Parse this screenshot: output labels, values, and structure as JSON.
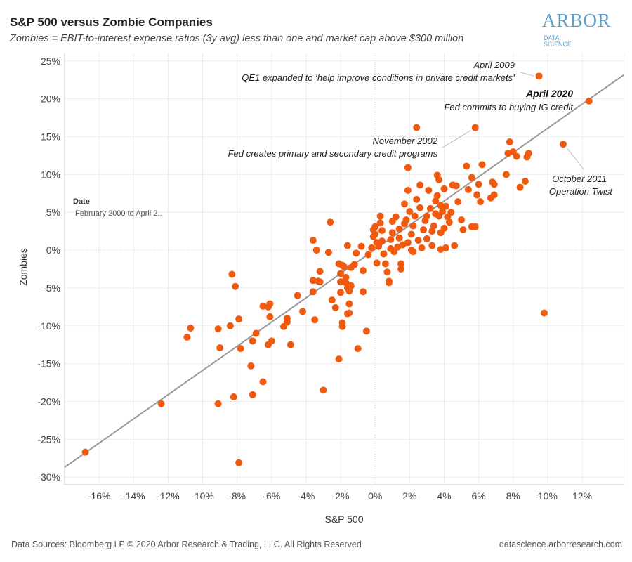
{
  "header": {
    "title": "S&P 500 versus Zombie Companies",
    "subtitle": "Zombies = EBIT-to-interest expense ratios (3y avg) less than one and market cap above $300 million"
  },
  "logo": {
    "main": "ARBOR",
    "line1": "DATA",
    "line2": "SCIENCE"
  },
  "footer": {
    "left": "Data Sources: Bloomberg LP © 2020 Arbor Research & Trading, LLC. All Rights Reserved",
    "right": "datascience.arborresearch.com"
  },
  "filter": {
    "label": "Date",
    "value": "February 2000 to April 2.."
  },
  "colors": {
    "point": "#f05a0e",
    "trend": "#999999",
    "grid": "#ececec"
  },
  "chart_data": {
    "type": "scatter",
    "xlabel": "S&P 500",
    "ylabel": "Zombies",
    "xlim": [
      -18,
      14.4
    ],
    "ylim": [
      -31,
      26
    ],
    "x_ticks": [
      -16,
      -14,
      -12,
      -10,
      -8,
      -6,
      -4,
      -2,
      0,
      2,
      4,
      6,
      8,
      10,
      12
    ],
    "y_ticks": [
      -30,
      -25,
      -20,
      -15,
      -10,
      -5,
      0,
      5,
      10,
      15,
      20,
      25
    ],
    "x_tick_labels": [
      "-16%",
      "-14%",
      "-12%",
      "-10%",
      "-8%",
      "-6%",
      "-4%",
      "-2%",
      "0%",
      "2%",
      "4%",
      "6%",
      "8%",
      "10%",
      "12%"
    ],
    "y_tick_labels": [
      "-30%",
      "-25%",
      "-20%",
      "-15%",
      "-10%",
      "-5%",
      "0%",
      "5%",
      "10%",
      "15%",
      "20%",
      "25%"
    ],
    "trendline": {
      "slope": 1.6,
      "intercept": 0.1
    },
    "annotations": [
      {
        "lines": [
          "April 2009",
          "QE1 expanded to ‘help improve conditions in private credit markets’"
        ],
        "point": [
          9.5,
          23
        ]
      },
      {
        "lines": [
          "April 2020",
          "Fed commits to buying IG credit"
        ],
        "point": [
          12.4,
          19.7
        ],
        "bold_first": true
      },
      {
        "lines": [
          "November 2002",
          "Fed creates primary and secondary credit programs"
        ],
        "point": [
          5.8,
          16.2
        ]
      },
      {
        "lines": [
          "October 2011",
          "Operation Twist"
        ],
        "point": [
          10.9,
          14
        ]
      }
    ],
    "points": [
      [
        -16.8,
        -26.7
      ],
      [
        -12.4,
        -20.3
      ],
      [
        -10.7,
        -10.3
      ],
      [
        -10.9,
        -11.5
      ],
      [
        -9.1,
        -20.3
      ],
      [
        -9.0,
        -12.9
      ],
      [
        -9.1,
        -10.4
      ],
      [
        -8.3,
        -3.2
      ],
      [
        -8.1,
        -4.8
      ],
      [
        -8.4,
        -10.0
      ],
      [
        -8.2,
        -19.4
      ],
      [
        -7.9,
        -9.1
      ],
      [
        -7.8,
        -13.0
      ],
      [
        -7.9,
        -28.1
      ],
      [
        -7.1,
        -12.0
      ],
      [
        -7.2,
        -15.3
      ],
      [
        -7.1,
        -19.1
      ],
      [
        -6.9,
        -11.0
      ],
      [
        -6.5,
        -7.4
      ],
      [
        -6.2,
        -7.5
      ],
      [
        -6.1,
        -7.1
      ],
      [
        -6.1,
        -8.8
      ],
      [
        -6.5,
        -17.4
      ],
      [
        -6.2,
        -12.5
      ],
      [
        -6.0,
        -12.0
      ],
      [
        -5.3,
        -10.1
      ],
      [
        -5.1,
        -9.5
      ],
      [
        -5.1,
        -9.0
      ],
      [
        -4.9,
        -12.5
      ],
      [
        -4.5,
        -6.0
      ],
      [
        -4.2,
        -8.1
      ],
      [
        -3.6,
        -4.0
      ],
      [
        -3.6,
        -5.5
      ],
      [
        -3.3,
        -4.1
      ],
      [
        -3.6,
        1.3
      ],
      [
        -3.4,
        0.0
      ],
      [
        -3.2,
        -2.8
      ],
      [
        -3.2,
        -4.2
      ],
      [
        -3.5,
        -9.2
      ],
      [
        -3.0,
        -18.5
      ],
      [
        -2.6,
        3.7
      ],
      [
        -2.7,
        -0.3
      ],
      [
        -2.5,
        -6.6
      ],
      [
        -2.3,
        -7.6
      ],
      [
        -2.1,
        -14.4
      ],
      [
        -1.9,
        -9.6
      ],
      [
        -1.9,
        -10.1
      ],
      [
        -2.0,
        -5.6
      ],
      [
        -2.0,
        -4.2
      ],
      [
        -1.9,
        -2.0
      ],
      [
        -2.0,
        -3.1
      ],
      [
        -2.1,
        -1.8
      ],
      [
        -1.8,
        -2.2
      ],
      [
        -1.7,
        -3.6
      ],
      [
        -1.7,
        -4.3
      ],
      [
        -1.6,
        -5.0
      ],
      [
        -1.5,
        -5.4
      ],
      [
        -1.5,
        -7.1
      ],
      [
        -1.6,
        -8.4
      ],
      [
        -1.5,
        -8.3
      ],
      [
        -1.4,
        -4.7
      ],
      [
        -1.4,
        -2.3
      ],
      [
        -1.6,
        0.6
      ],
      [
        -1.2,
        -1.9
      ],
      [
        -1.1,
        -0.4
      ],
      [
        -1.0,
        -13.0
      ],
      [
        -0.8,
        0.5
      ],
      [
        -0.7,
        -2.7
      ],
      [
        -0.7,
        -5.5
      ],
      [
        -0.5,
        -10.7
      ],
      [
        -0.4,
        -0.6
      ],
      [
        -0.2,
        0.3
      ],
      [
        -0.1,
        1.8
      ],
      [
        -0.1,
        2.7
      ],
      [
        0.0,
        3.1
      ],
      [
        0.0,
        2.1
      ],
      [
        0.1,
        1.0
      ],
      [
        0.1,
        -1.7
      ],
      [
        0.2,
        0.5
      ],
      [
        0.3,
        3.6
      ],
      [
        0.3,
        4.5
      ],
      [
        0.4,
        2.6
      ],
      [
        0.4,
        1.2
      ],
      [
        0.5,
        -0.5
      ],
      [
        0.6,
        -1.8
      ],
      [
        0.7,
        -2.9
      ],
      [
        0.8,
        -4.3
      ],
      [
        0.8,
        -4.1
      ],
      [
        0.9,
        0.2
      ],
      [
        0.9,
        1.4
      ],
      [
        1.0,
        2.3
      ],
      [
        1.0,
        3.8
      ],
      [
        1.1,
        -0.2
      ],
      [
        1.2,
        4.4
      ],
      [
        1.3,
        0.4
      ],
      [
        1.4,
        1.6
      ],
      [
        1.4,
        2.8
      ],
      [
        1.5,
        -1.8
      ],
      [
        1.5,
        -2.5
      ],
      [
        1.6,
        0.7
      ],
      [
        1.7,
        3.5
      ],
      [
        1.7,
        6.1
      ],
      [
        1.8,
        4.0
      ],
      [
        1.9,
        1.0
      ],
      [
        1.9,
        7.9
      ],
      [
        1.9,
        10.9
      ],
      [
        2.0,
        5.1
      ],
      [
        2.1,
        2.1
      ],
      [
        2.1,
        0.0
      ],
      [
        2.2,
        -0.2
      ],
      [
        2.2,
        3.2
      ],
      [
        2.3,
        4.5
      ],
      [
        2.4,
        6.7
      ],
      [
        2.4,
        16.2
      ],
      [
        2.5,
        1.3
      ],
      [
        2.6,
        5.6
      ],
      [
        2.6,
        8.6
      ],
      [
        2.7,
        0.3
      ],
      [
        2.8,
        2.7
      ],
      [
        2.9,
        3.9
      ],
      [
        3.0,
        4.5
      ],
      [
        3.0,
        1.5
      ],
      [
        3.1,
        7.9
      ],
      [
        3.2,
        5.5
      ],
      [
        3.3,
        0.6
      ],
      [
        3.3,
        2.5
      ],
      [
        3.4,
        3.2
      ],
      [
        3.5,
        4.8
      ],
      [
        3.5,
        6.5
      ],
      [
        3.6,
        7.2
      ],
      [
        3.6,
        9.9
      ],
      [
        3.7,
        9.3
      ],
      [
        3.7,
        4.5
      ],
      [
        3.8,
        5.9
      ],
      [
        3.8,
        2.3
      ],
      [
        3.8,
        0.1
      ],
      [
        3.9,
        5.1
      ],
      [
        4.0,
        8.1
      ],
      [
        4.0,
        2.9
      ],
      [
        4.1,
        0.3
      ],
      [
        4.1,
        5.8
      ],
      [
        4.2,
        4.4
      ],
      [
        4.3,
        3.7
      ],
      [
        4.4,
        5.0
      ],
      [
        4.5,
        8.6
      ],
      [
        4.6,
        0.6
      ],
      [
        4.7,
        8.5
      ],
      [
        4.8,
        6.4
      ],
      [
        5.0,
        4.0
      ],
      [
        5.1,
        2.7
      ],
      [
        5.3,
        11.1
      ],
      [
        5.4,
        8.0
      ],
      [
        5.6,
        3.1
      ],
      [
        5.6,
        9.6
      ],
      [
        5.8,
        3.1
      ],
      [
        5.8,
        16.2
      ],
      [
        5.9,
        7.3
      ],
      [
        6.0,
        8.7
      ],
      [
        6.1,
        6.4
      ],
      [
        6.2,
        11.3
      ],
      [
        6.7,
        6.9
      ],
      [
        6.8,
        9.0
      ],
      [
        6.9,
        8.7
      ],
      [
        6.9,
        7.3
      ],
      [
        7.6,
        10.0
      ],
      [
        7.7,
        12.8
      ],
      [
        7.8,
        14.3
      ],
      [
        8.0,
        13.0
      ],
      [
        8.2,
        12.4
      ],
      [
        8.4,
        8.3
      ],
      [
        8.7,
        9.1
      ],
      [
        8.8,
        12.3
      ],
      [
        8.9,
        12.8
      ],
      [
        9.5,
        23.0
      ],
      [
        9.8,
        -8.3
      ],
      [
        10.9,
        14.0
      ],
      [
        12.4,
        19.7
      ]
    ]
  }
}
